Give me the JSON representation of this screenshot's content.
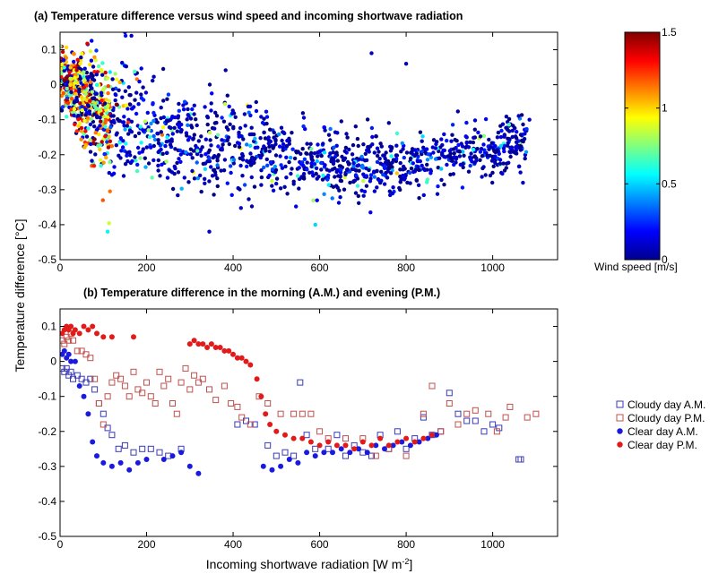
{
  "y_label": "Temperature difference [°C]",
  "x_label_main": "Incoming shortwave radiation [W m",
  "x_label_sup": "-2",
  "x_label_end": "]",
  "chart_data": [
    {
      "type": "scatter",
      "title": "(a) Temperature difference versus wind speed and incoming shortwave radiation",
      "xlim": [
        0,
        1150
      ],
      "ylim": [
        -0.5,
        0.15
      ],
      "xticks": [
        "0",
        "200",
        "400",
        "600",
        "800",
        "1000"
      ],
      "yticks": [
        "0.1",
        "0",
        "-0.1",
        "-0.2",
        "-0.3",
        "-0.4",
        "-0.5"
      ],
      "grid": false,
      "colorbar": {
        "label": "Wind speed [m/s]",
        "range": [
          0,
          1.5
        ],
        "ticks": [
          "0",
          "0.5",
          "1",
          "1.5"
        ],
        "colormap": "jet"
      },
      "summary_by_x_bin": {
        "description_unit": "x bin center, mean y, y spread, typical wind speed",
        "bins": [
          {
            "x": 10,
            "y_mean": 0.02,
            "y_spread": 0.08,
            "wind": 0.9
          },
          {
            "x": 60,
            "y_mean": -0.05,
            "y_spread": 0.12,
            "wind": 1.0
          },
          {
            "x": 120,
            "y_mean": -0.1,
            "y_spread": 0.16,
            "wind": 0.8
          },
          {
            "x": 200,
            "y_mean": -0.14,
            "y_spread": 0.14,
            "wind": 0.5
          },
          {
            "x": 300,
            "y_mean": -0.16,
            "y_spread": 0.13,
            "wind": 0.3
          },
          {
            "x": 400,
            "y_mean": -0.18,
            "y_spread": 0.12,
            "wind": 0.2
          },
          {
            "x": 500,
            "y_mean": -0.2,
            "y_spread": 0.11,
            "wind": 0.2
          },
          {
            "x": 600,
            "y_mean": -0.22,
            "y_spread": 0.09,
            "wind": 0.2
          },
          {
            "x": 700,
            "y_mean": -0.23,
            "y_spread": 0.08,
            "wind": 0.15
          },
          {
            "x": 800,
            "y_mean": -0.23,
            "y_spread": 0.07,
            "wind": 0.15
          },
          {
            "x": 900,
            "y_mean": -0.2,
            "y_spread": 0.07,
            "wind": 0.1
          },
          {
            "x": 1000,
            "y_mean": -0.2,
            "y_spread": 0.07,
            "wind": 0.1
          },
          {
            "x": 1080,
            "y_mean": -0.15,
            "y_spread": 0.08,
            "wind": 0.05
          }
        ]
      },
      "highlight_points": [
        {
          "x": 150,
          "y": 0.15,
          "wind": 0.1
        },
        {
          "x": 165,
          "y": 0.14,
          "wind": 0.1
        },
        {
          "x": 720,
          "y": 0.09,
          "wind": 0.1
        },
        {
          "x": 800,
          "y": 0.06,
          "wind": 0.1
        },
        {
          "x": 1085,
          "y": -0.1,
          "wind": 0.1
        },
        {
          "x": 345,
          "y": -0.42,
          "wind": 0.1
        },
        {
          "x": 110,
          "y": -0.42,
          "wind": 0.55
        },
        {
          "x": 590,
          "y": -0.4,
          "wind": 0.5
        },
        {
          "x": 1070,
          "y": -0.28,
          "wind": 0.1
        }
      ]
    },
    {
      "type": "scatter",
      "title": "(b) Temperature difference in the morning (A.M.) and evening (P.M.)",
      "xlim": [
        0,
        1150
      ],
      "ylim": [
        -0.5,
        0.15
      ],
      "xticks": [
        "0",
        "200",
        "400",
        "600",
        "800",
        "1000"
      ],
      "yticks": [
        "0.1",
        "0",
        "-0.1",
        "-0.2",
        "-0.3",
        "-0.4",
        "-0.5"
      ],
      "grid": false,
      "legend_position": "right",
      "series": [
        {
          "name": "Cloudy day A.M.",
          "marker": "open-square",
          "color": "#3a3ab8",
          "points": [
            [
              5,
              -0.02
            ],
            [
              10,
              -0.03
            ],
            [
              15,
              -0.02
            ],
            [
              20,
              -0.04
            ],
            [
              25,
              -0.03
            ],
            [
              30,
              -0.05
            ],
            [
              40,
              -0.04
            ],
            [
              50,
              -0.05
            ],
            [
              60,
              -0.06
            ],
            [
              70,
              -0.05
            ],
            [
              80,
              -0.08
            ],
            [
              90,
              -0.12
            ],
            [
              100,
              -0.15
            ],
            [
              110,
              -0.19
            ],
            [
              120,
              -0.21
            ],
            [
              135,
              -0.25
            ],
            [
              150,
              -0.24
            ],
            [
              170,
              -0.26
            ],
            [
              190,
              -0.25
            ],
            [
              210,
              -0.25
            ],
            [
              230,
              -0.26
            ],
            [
              250,
              -0.27
            ],
            [
              280,
              -0.25
            ],
            [
              410,
              -0.18
            ],
            [
              430,
              -0.17
            ],
            [
              450,
              -0.18
            ],
            [
              480,
              -0.24
            ],
            [
              500,
              -0.27
            ],
            [
              520,
              -0.26
            ],
            [
              540,
              -0.27
            ],
            [
              555,
              -0.06
            ],
            [
              570,
              -0.21
            ],
            [
              590,
              -0.25
            ],
            [
              620,
              -0.25
            ],
            [
              640,
              -0.21
            ],
            [
              660,
              -0.27
            ],
            [
              680,
              -0.24
            ],
            [
              700,
              -0.26
            ],
            [
              720,
              -0.27
            ],
            [
              740,
              -0.21
            ],
            [
              760,
              -0.25
            ],
            [
              780,
              -0.2
            ],
            [
              800,
              -0.25
            ],
            [
              820,
              -0.22
            ],
            [
              840,
              -0.16
            ],
            [
              860,
              -0.21
            ],
            [
              880,
              -0.2
            ],
            [
              900,
              -0.09
            ],
            [
              920,
              -0.15
            ],
            [
              940,
              -0.17
            ],
            [
              960,
              -0.17
            ],
            [
              980,
              -0.2
            ],
            [
              1000,
              -0.18
            ],
            [
              1015,
              -0.19
            ],
            [
              1060,
              -0.28
            ],
            [
              1065,
              -0.28
            ]
          ]
        },
        {
          "name": "Cloudy day P.M.",
          "marker": "open-square",
          "color": "#c0504d",
          "points": [
            [
              5,
              0.06
            ],
            [
              10,
              0.05
            ],
            [
              15,
              0.07
            ],
            [
              20,
              0.06
            ],
            [
              25,
              0.08
            ],
            [
              30,
              0.06
            ],
            [
              40,
              0.03
            ],
            [
              50,
              0.03
            ],
            [
              60,
              0.02
            ],
            [
              70,
              0.01
            ],
            [
              80,
              -0.05
            ],
            [
              90,
              -0.12
            ],
            [
              100,
              -0.18
            ],
            [
              110,
              -0.1
            ],
            [
              120,
              -0.06
            ],
            [
              130,
              -0.04
            ],
            [
              140,
              -0.05
            ],
            [
              150,
              -0.07
            ],
            [
              160,
              -0.1
            ],
            [
              170,
              -0.03
            ],
            [
              180,
              -0.08
            ],
            [
              190,
              -0.09
            ],
            [
              200,
              -0.06
            ],
            [
              210,
              -0.1
            ],
            [
              220,
              -0.12
            ],
            [
              230,
              -0.03
            ],
            [
              240,
              -0.07
            ],
            [
              250,
              -0.05
            ],
            [
              260,
              -0.12
            ],
            [
              270,
              -0.15
            ],
            [
              280,
              -0.06
            ],
            [
              290,
              -0.02
            ],
            [
              300,
              -0.08
            ],
            [
              310,
              -0.04
            ],
            [
              320,
              -0.06
            ],
            [
              330,
              -0.05
            ],
            [
              345,
              -0.08
            ],
            [
              360,
              -0.11
            ],
            [
              380,
              -0.07
            ],
            [
              395,
              -0.12
            ],
            [
              410,
              -0.13
            ],
            [
              420,
              -0.16
            ],
            [
              440,
              -0.18
            ],
            [
              460,
              -0.1
            ],
            [
              480,
              -0.12
            ],
            [
              510,
              -0.15
            ],
            [
              540,
              -0.15
            ],
            [
              560,
              -0.15
            ],
            [
              580,
              -0.15
            ],
            [
              600,
              -0.2
            ],
            [
              620,
              -0.22
            ],
            [
              660,
              -0.22
            ],
            [
              700,
              -0.22
            ],
            [
              730,
              -0.27
            ],
            [
              760,
              -0.25
            ],
            [
              800,
              -0.27
            ],
            [
              840,
              -0.15
            ],
            [
              860,
              -0.07
            ],
            [
              880,
              -0.2
            ],
            [
              900,
              -0.12
            ],
            [
              920,
              -0.18
            ],
            [
              940,
              -0.15
            ],
            [
              960,
              -0.14
            ],
            [
              990,
              -0.15
            ],
            [
              1010,
              -0.2
            ],
            [
              1030,
              -0.16
            ],
            [
              1040,
              -0.13
            ],
            [
              1080,
              -0.16
            ],
            [
              1100,
              -0.15
            ]
          ]
        },
        {
          "name": "Clear day A.M.",
          "marker": "filled-circle",
          "color": "#1a1adf",
          "points": [
            [
              5,
              0.02
            ],
            [
              10,
              0.03
            ],
            [
              15,
              0.01
            ],
            [
              20,
              0.02
            ],
            [
              25,
              0.0
            ],
            [
              35,
              0.0
            ],
            [
              45,
              -0.07
            ],
            [
              55,
              -0.1
            ],
            [
              65,
              -0.15
            ],
            [
              75,
              -0.23
            ],
            [
              85,
              -0.27
            ],
            [
              100,
              -0.29
            ],
            [
              120,
              -0.3
            ],
            [
              140,
              -0.29
            ],
            [
              160,
              -0.31
            ],
            [
              180,
              -0.29
            ],
            [
              200,
              -0.28
            ],
            [
              240,
              -0.28
            ],
            [
              260,
              -0.27
            ],
            [
              280,
              -0.26
            ],
            [
              300,
              -0.3
            ],
            [
              320,
              -0.32
            ],
            [
              470,
              -0.3
            ],
            [
              490,
              -0.31
            ],
            [
              510,
              -0.3
            ],
            [
              530,
              -0.28
            ],
            [
              550,
              -0.29
            ],
            [
              570,
              -0.26
            ],
            [
              590,
              -0.27
            ],
            [
              610,
              -0.26
            ],
            [
              630,
              -0.26
            ],
            [
              650,
              -0.25
            ],
            [
              670,
              -0.26
            ],
            [
              690,
              -0.25
            ],
            [
              710,
              -0.26
            ],
            [
              730,
              -0.24
            ],
            [
              750,
              -0.25
            ],
            [
              770,
              -0.24
            ],
            [
              790,
              -0.23
            ],
            [
              810,
              -0.24
            ],
            [
              830,
              -0.23
            ],
            [
              850,
              -0.22
            ],
            [
              870,
              -0.21
            ]
          ]
        },
        {
          "name": "Clear day P.M.",
          "marker": "filled-circle",
          "color": "#e31a1a",
          "points": [
            [
              5,
              0.08
            ],
            [
              10,
              0.09
            ],
            [
              15,
              0.1
            ],
            [
              20,
              0.09
            ],
            [
              25,
              0.1
            ],
            [
              30,
              0.08
            ],
            [
              35,
              0.09
            ],
            [
              45,
              0.08
            ],
            [
              55,
              0.1
            ],
            [
              65,
              0.09
            ],
            [
              75,
              0.1
            ],
            [
              85,
              0.08
            ],
            [
              100,
              0.07
            ],
            [
              120,
              0.07
            ],
            [
              170,
              0.07
            ],
            [
              300,
              0.05
            ],
            [
              310,
              0.06
            ],
            [
              320,
              0.05
            ],
            [
              330,
              0.05
            ],
            [
              340,
              0.04
            ],
            [
              350,
              0.05
            ],
            [
              360,
              0.04
            ],
            [
              370,
              0.04
            ],
            [
              380,
              0.03
            ],
            [
              390,
              0.03
            ],
            [
              400,
              0.02
            ],
            [
              410,
              0.01
            ],
            [
              420,
              0.01
            ],
            [
              430,
              0.0
            ],
            [
              440,
              -0.01
            ],
            [
              455,
              -0.05
            ],
            [
              465,
              -0.1
            ],
            [
              475,
              -0.15
            ],
            [
              485,
              -0.18
            ],
            [
              500,
              -0.2
            ],
            [
              520,
              -0.21
            ],
            [
              540,
              -0.22
            ],
            [
              560,
              -0.22
            ],
            [
              580,
              -0.23
            ],
            [
              600,
              -0.24
            ],
            [
              620,
              -0.23
            ],
            [
              640,
              -0.24
            ],
            [
              660,
              -0.24
            ],
            [
              680,
              -0.25
            ],
            [
              700,
              -0.23
            ],
            [
              720,
              -0.24
            ],
            [
              740,
              -0.22
            ],
            [
              760,
              -0.24
            ],
            [
              780,
              -0.23
            ],
            [
              800,
              -0.22
            ],
            [
              820,
              -0.23
            ],
            [
              840,
              -0.22
            ],
            [
              860,
              -0.21
            ]
          ]
        }
      ]
    }
  ]
}
